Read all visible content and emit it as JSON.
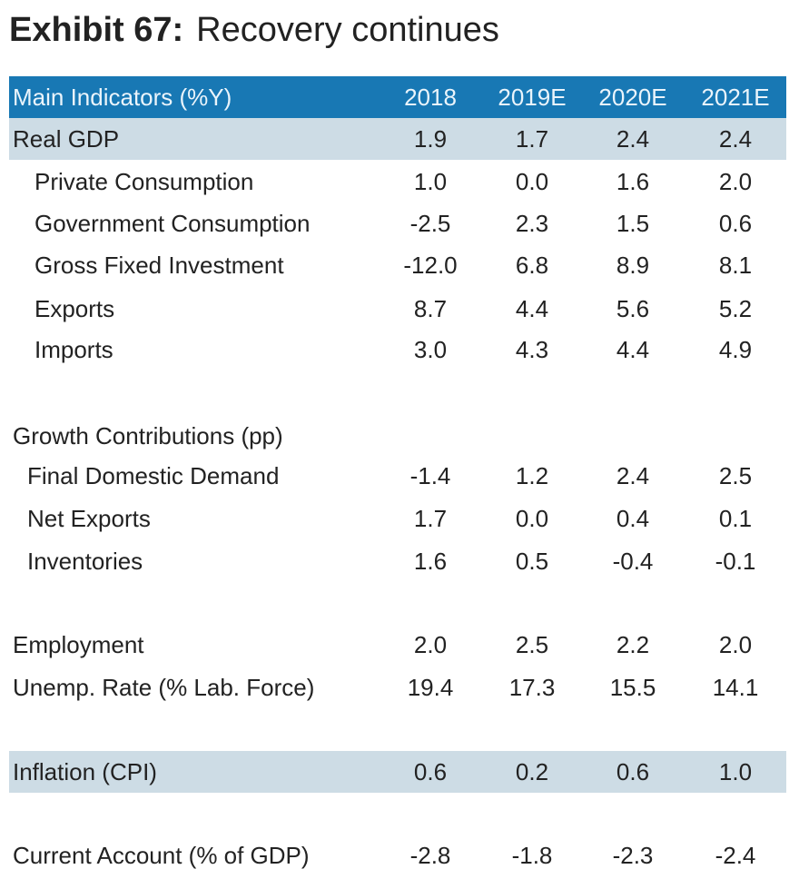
{
  "title": {
    "exhibit": "Exhibit 67:",
    "text": "Recovery continues"
  },
  "header": {
    "label": "Main Indicators (%Y)",
    "columns": [
      "2018",
      "2019E",
      "2020E",
      "2021E"
    ]
  },
  "rows": [
    {
      "label": "Real GDP",
      "values": [
        "1.9",
        "1.7",
        "2.4",
        "2.4"
      ]
    },
    {
      "label": "Private Consumption",
      "values": [
        "1.0",
        "0.0",
        "1.6",
        "2.0"
      ]
    },
    {
      "label": "Government Consumption",
      "values": [
        "-2.5",
        "2.3",
        "1.5",
        "0.6"
      ]
    },
    {
      "label": "Gross Fixed Investment",
      "values": [
        "-12.0",
        "6.8",
        "8.9",
        "8.1"
      ]
    },
    {
      "label": "Exports",
      "values": [
        "8.7",
        "4.4",
        "5.6",
        "5.2"
      ]
    },
    {
      "label": "Imports",
      "values": [
        "3.0",
        "4.3",
        "4.4",
        "4.9"
      ]
    },
    {
      "label": "Growth Contributions (pp)",
      "values": [
        "",
        "",
        "",
        ""
      ]
    },
    {
      "label": "Final Domestic Demand",
      "values": [
        "-1.4",
        "1.2",
        "2.4",
        "2.5"
      ]
    },
    {
      "label": "Net Exports",
      "values": [
        "1.7",
        "0.0",
        "0.4",
        "0.1"
      ]
    },
    {
      "label": "Inventories",
      "values": [
        "1.6",
        "0.5",
        "-0.4",
        "-0.1"
      ]
    },
    {
      "label": "Employment",
      "values": [
        "2.0",
        "2.5",
        "2.2",
        "2.0"
      ]
    },
    {
      "label": "Unemp. Rate (% Lab. Force)",
      "values": [
        "19.4",
        "17.3",
        "15.5",
        "14.1"
      ]
    },
    {
      "label": "Inflation (CPI)",
      "values": [
        "0.6",
        "0.2",
        "0.6",
        "1.0"
      ]
    },
    {
      "label": "Current Account (% of GDP)",
      "values": [
        "-2.8",
        "-1.8",
        "-2.3",
        "-2.4"
      ]
    }
  ]
}
